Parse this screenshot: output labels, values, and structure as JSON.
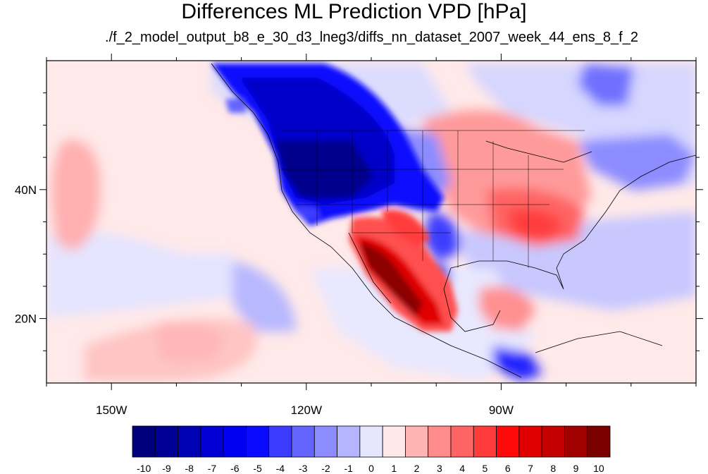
{
  "title": "Differences ML Prediction VPD [hPa]",
  "subtitle": "./f_2_model_output_b8_e_30_d3_lneg3/diffs_nn_dataset_2007_week_44_ens_8_f_2",
  "map": {
    "lon_range": [
      -160,
      -60
    ],
    "lat_range": [
      10,
      60
    ],
    "x_ticks": [
      {
        "lon": -150,
        "label": "150W"
      },
      {
        "lon": -120,
        "label": "120W"
      },
      {
        "lon": -90,
        "label": "90W"
      }
    ],
    "y_ticks": [
      {
        "lat": 40,
        "label": "40N"
      },
      {
        "lat": 20,
        "label": "20N"
      }
    ]
  },
  "colorbar": {
    "labels": [
      "-10",
      "-9",
      "-8",
      "-7",
      "-6",
      "-5",
      "-4",
      "-3",
      "-2",
      "-1",
      "0",
      "1",
      "2",
      "3",
      "4",
      "5",
      "6",
      "7",
      "8",
      "9",
      "10"
    ],
    "colors": [
      "#00007a",
      "#000096",
      "#0000b4",
      "#0000d2",
      "#0000f0",
      "#0a0aff",
      "#3c3cff",
      "#6464ff",
      "#8c8cff",
      "#b4b4ff",
      "#e6e6ff",
      "#ffe8e8",
      "#ffb4b4",
      "#ff8c8c",
      "#ff6464",
      "#ff3c3c",
      "#ff0a0a",
      "#e00000",
      "#c40000",
      "#a00000",
      "#7a0000"
    ]
  }
}
